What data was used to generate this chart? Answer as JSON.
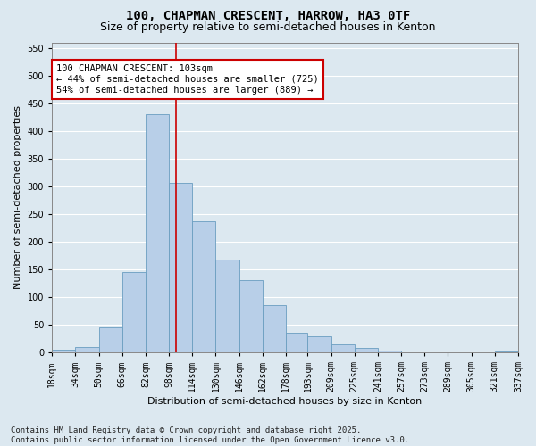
{
  "title": "100, CHAPMAN CRESCENT, HARROW, HA3 0TF",
  "subtitle": "Size of property relative to semi-detached houses in Kenton",
  "xlabel": "Distribution of semi-detached houses by size in Kenton",
  "ylabel": "Number of semi-detached properties",
  "fig_bg_color": "#dce8f0",
  "plot_bg_color": "#dce8f0",
  "bar_color": "#b8cfe8",
  "bar_edge_color": "#6a9ec0",
  "vline_x": 103,
  "vline_color": "#cc0000",
  "bin_edges": [
    18,
    34,
    50,
    66,
    82,
    98,
    114,
    130,
    146,
    162,
    178,
    193,
    209,
    225,
    241,
    257,
    273,
    289,
    305,
    321,
    337
  ],
  "bin_labels": [
    "18sqm",
    "34sqm",
    "50sqm",
    "66sqm",
    "82sqm",
    "98sqm",
    "114sqm",
    "130sqm",
    "146sqm",
    "162sqm",
    "178sqm",
    "193sqm",
    "209sqm",
    "225sqm",
    "241sqm",
    "257sqm",
    "273sqm",
    "289sqm",
    "305sqm",
    "321sqm",
    "337sqm"
  ],
  "bar_heights": [
    5,
    10,
    45,
    145,
    430,
    307,
    237,
    168,
    130,
    85,
    36,
    30,
    15,
    8,
    3,
    1,
    0,
    0,
    0,
    2
  ],
  "ylim": [
    0,
    560
  ],
  "yticks": [
    0,
    50,
    100,
    150,
    200,
    250,
    300,
    350,
    400,
    450,
    500,
    550
  ],
  "annotation_title": "100 CHAPMAN CRESCENT: 103sqm",
  "annotation_line1": "← 44% of semi-detached houses are smaller (725)",
  "annotation_line2": "54% of semi-detached houses are larger (889) →",
  "annotation_box_color": "#cc0000",
  "footer_line1": "Contains HM Land Registry data © Crown copyright and database right 2025.",
  "footer_line2": "Contains public sector information licensed under the Open Government Licence v3.0.",
  "grid_color": "#ffffff",
  "title_fontsize": 10,
  "subtitle_fontsize": 9,
  "axis_label_fontsize": 8,
  "tick_fontsize": 7,
  "annotation_fontsize": 7.5,
  "footer_fontsize": 6.5
}
